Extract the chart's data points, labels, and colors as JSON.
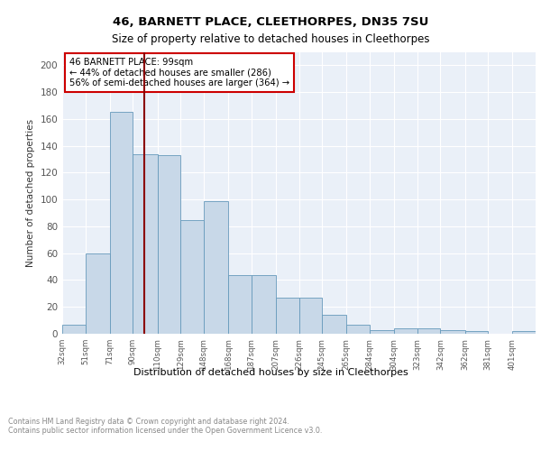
{
  "title1": "46, BARNETT PLACE, CLEETHORPES, DN35 7SU",
  "title2": "Size of property relative to detached houses in Cleethorpes",
  "xlabel": "Distribution of detached houses by size in Cleethorpes",
  "ylabel": "Number of detached properties",
  "footnote": "Contains HM Land Registry data © Crown copyright and database right 2024.\nContains public sector information licensed under the Open Government Licence v3.0.",
  "annotation_line1": "46 BARNETT PLACE: 99sqm",
  "annotation_line2": "← 44% of detached houses are smaller (286)",
  "annotation_line3": "56% of semi-detached houses are larger (364) →",
  "property_size": 99,
  "bar_color": "#c8d8e8",
  "bar_edge_color": "#6699bb",
  "vline_color": "#8b0000",
  "background_color": "#eaf0f8",
  "bins": [
    32,
    51,
    71,
    90,
    110,
    129,
    148,
    168,
    187,
    207,
    226,
    245,
    265,
    284,
    304,
    323,
    342,
    362,
    381,
    401,
    420
  ],
  "counts": [
    7,
    60,
    165,
    134,
    133,
    85,
    99,
    44,
    44,
    27,
    27,
    14,
    7,
    3,
    4,
    4,
    3,
    2,
    0,
    2,
    2
  ],
  "ylim": [
    0,
    210
  ],
  "yticks": [
    0,
    20,
    40,
    60,
    80,
    100,
    120,
    140,
    160,
    180,
    200
  ]
}
